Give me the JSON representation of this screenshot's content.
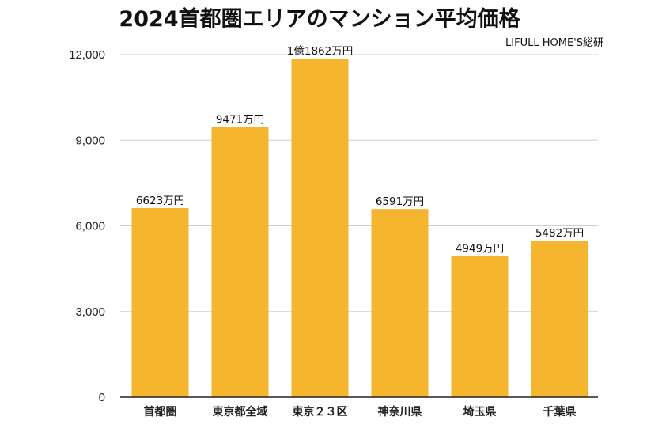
{
  "chart_data": {
    "type": "bar",
    "title": "2024首都圏エリアのマンション平均価格",
    "source": "LIFULL HOME'S総研",
    "categories": [
      "首都圏",
      "東京都全域",
      "東京２３区",
      "神奈川県",
      "埼玉県",
      "千葉県"
    ],
    "values": [
      6623,
      9471,
      11862,
      6591,
      4949,
      5482
    ],
    "data_labels": [
      "6623万円",
      "9471万円",
      "1億1862万円",
      "6591万円",
      "4949万円",
      "5482万円"
    ],
    "unit": "万円",
    "ylim": [
      0,
      12000
    ],
    "yticks": [
      0,
      3000,
      6000,
      9000,
      12000
    ],
    "ytick_labels": [
      "0",
      "3,000",
      "6,000",
      "9,000",
      "12,000"
    ],
    "xlabel": "",
    "ylabel": "",
    "grid": true,
    "legend": "none",
    "colors": {
      "bar": "#F6B52E",
      "grid": "#CFCFCF",
      "axis": "#222222"
    }
  }
}
